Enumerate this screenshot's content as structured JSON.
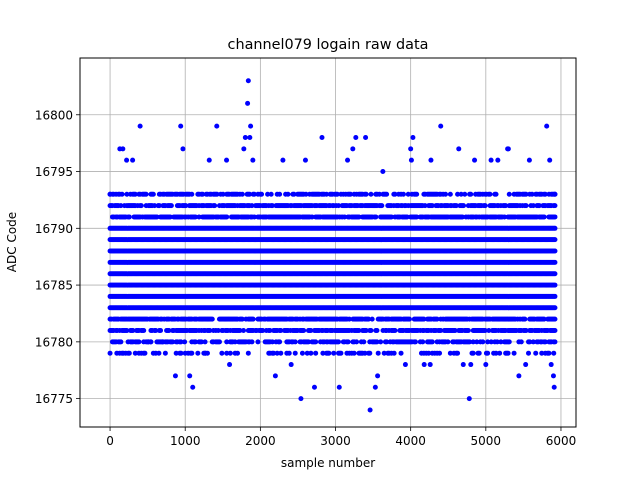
{
  "chart_data": {
    "type": "scatter",
    "title": "channel079 logain raw data",
    "xlabel": "sample number",
    "ylabel": "ADC Code",
    "xlim": [
      -400,
      6200
    ],
    "ylim": [
      16772.5,
      16805
    ],
    "xticks": [
      0,
      1000,
      2000,
      3000,
      4000,
      5000,
      6000
    ],
    "yticks": [
      16775,
      16780,
      16785,
      16790,
      16795,
      16800
    ],
    "grid": true,
    "marker_color": "#0000ff",
    "series": [
      {
        "n_samples": 5920,
        "dense_band": [
          16779,
          16793
        ],
        "points": [
          [
            0,
            16793
          ],
          [
            0,
            16779
          ],
          [
            90,
            16779
          ],
          [
            130,
            16797
          ],
          [
            170,
            16797
          ],
          [
            220,
            16796
          ],
          [
            300,
            16796
          ],
          [
            400,
            16799
          ],
          [
            510,
            16780
          ],
          [
            540,
            16780
          ],
          [
            650,
            16779
          ],
          [
            700,
            16780
          ],
          [
            870,
            16777
          ],
          [
            880,
            16779
          ],
          [
            940,
            16799
          ],
          [
            970,
            16797
          ],
          [
            1000,
            16779
          ],
          [
            1060,
            16777
          ],
          [
            1100,
            16776
          ],
          [
            1270,
            16779
          ],
          [
            1320,
            16796
          ],
          [
            1420,
            16799
          ],
          [
            1550,
            16796
          ],
          [
            1590,
            16778
          ],
          [
            1780,
            16797
          ],
          [
            1800,
            16798
          ],
          [
            1830,
            16801
          ],
          [
            1840,
            16803
          ],
          [
            1870,
            16799
          ],
          [
            1860,
            16798
          ],
          [
            1900,
            16796
          ],
          [
            2200,
            16777
          ],
          [
            2300,
            16796
          ],
          [
            2410,
            16778
          ],
          [
            2540,
            16775
          ],
          [
            2560,
            16779
          ],
          [
            2600,
            16796
          ],
          [
            2720,
            16776
          ],
          [
            2820,
            16798
          ],
          [
            3050,
            16776
          ],
          [
            3160,
            16796
          ],
          [
            3230,
            16797
          ],
          [
            3270,
            16798
          ],
          [
            3400,
            16798
          ],
          [
            3460,
            16774
          ],
          [
            3530,
            16776
          ],
          [
            3560,
            16777
          ],
          [
            3630,
            16795
          ],
          [
            3780,
            16779
          ],
          [
            3930,
            16778
          ],
          [
            4000,
            16797
          ],
          [
            4010,
            16796
          ],
          [
            4030,
            16798
          ],
          [
            4180,
            16778
          ],
          [
            4260,
            16778
          ],
          [
            4270,
            16796
          ],
          [
            4400,
            16799
          ],
          [
            4640,
            16797
          ],
          [
            4700,
            16778
          ],
          [
            4780,
            16775
          ],
          [
            4800,
            16778
          ],
          [
            4850,
            16796
          ],
          [
            5000,
            16778
          ],
          [
            5070,
            16796
          ],
          [
            5160,
            16796
          ],
          [
            5290,
            16797
          ],
          [
            5300,
            16797
          ],
          [
            5440,
            16777
          ],
          [
            5530,
            16778
          ],
          [
            5580,
            16796
          ],
          [
            5810,
            16799
          ],
          [
            5850,
            16796
          ],
          [
            5870,
            16778
          ],
          [
            5900,
            16777
          ],
          [
            5910,
            16776
          ],
          [
            5920,
            16793
          ]
        ]
      }
    ]
  }
}
